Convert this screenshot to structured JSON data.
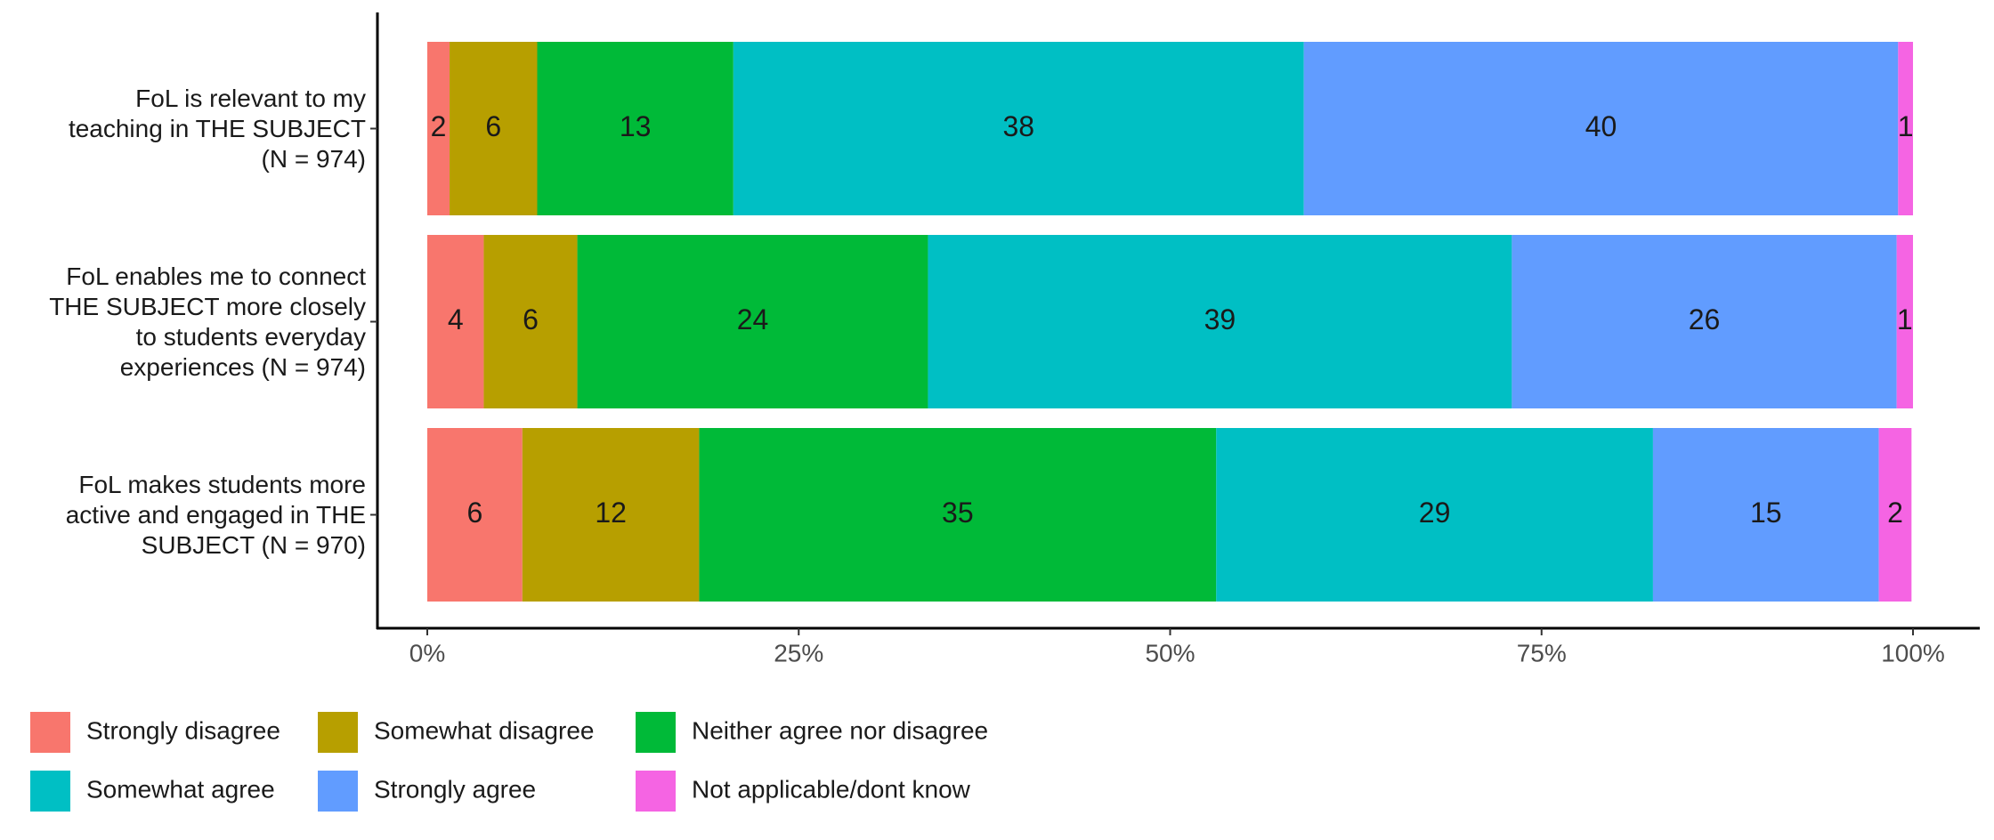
{
  "chart_data": {
    "type": "stacked_barh",
    "categories": [
      "FoL is relevant to my\nteaching in THE SUBJECT\n(N = 974)",
      "FoL enables me to connect\nTHE SUBJECT more closely\nto students everyday\nexperiences (N = 974)",
      "FoL makes students more\nactive and engaged in THE\nSUBJECT (N = 970)"
    ],
    "series": [
      {
        "name": "Strongly disagree",
        "color": "#F8766D",
        "values": [
          1.5,
          3.8,
          6.4
        ],
        "value_labels": [
          "2",
          "4",
          "6"
        ]
      },
      {
        "name": "Somewhat disagree",
        "color": "#B79F00",
        "values": [
          5.9,
          6.3,
          11.9
        ],
        "value_labels": [
          "6",
          "6",
          "12"
        ]
      },
      {
        "name": "Neither agree nor disagree",
        "color": "#00BA38",
        "values": [
          13.2,
          23.6,
          34.8
        ],
        "value_labels": [
          "13",
          "24",
          "35"
        ]
      },
      {
        "name": "Somewhat agree",
        "color": "#00BFC4",
        "values": [
          38.4,
          39.3,
          29.4
        ],
        "value_labels": [
          "38",
          "39",
          "29"
        ]
      },
      {
        "name": "Strongly agree",
        "color": "#619CFF",
        "values": [
          40.0,
          25.9,
          15.2
        ],
        "value_labels": [
          "40",
          "26",
          "15"
        ]
      },
      {
        "name": "Not applicable/dont know",
        "color": "#F564E3",
        "values": [
          1.0,
          1.1,
          2.2
        ],
        "value_labels": [
          "1",
          "1",
          "2"
        ]
      }
    ],
    "xlim": [
      0,
      100
    ],
    "xticks": [
      {
        "value": 0,
        "label": "0%"
      },
      {
        "value": 25,
        "label": "25%"
      },
      {
        "value": 50,
        "label": "50%"
      },
      {
        "value": 75,
        "label": "75%"
      },
      {
        "value": 100,
        "label": "100%"
      }
    ],
    "legend": "bottom-left"
  }
}
